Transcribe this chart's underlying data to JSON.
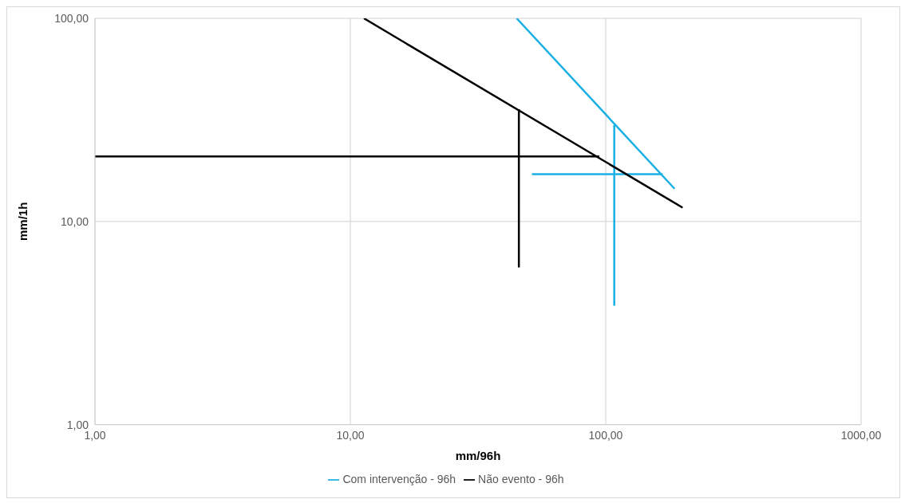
{
  "chart_data": {
    "type": "line",
    "xlabel": "mm/96h",
    "ylabel": "mm/1h",
    "log": "xy",
    "grid": true,
    "legend": "bottom",
    "marker": "none",
    "xlim": [
      1,
      1000
    ],
    "xticks": [
      {
        "value": 1,
        "label": "1,00"
      },
      {
        "value": 10,
        "label": "10,00"
      },
      {
        "value": 100,
        "label": "100,00"
      },
      {
        "value": 1000,
        "label": "1000,00"
      }
    ],
    "ylim": [
      1,
      100
    ],
    "yticks": [
      {
        "value": 1,
        "label": "1,00"
      },
      {
        "value": 10,
        "label": "10,00"
      },
      {
        "value": 100,
        "label": "100,00"
      }
    ],
    "series": [
      {
        "name": "Com intervenção - 96h",
        "color": "#1bb0e4",
        "x": [
          44.8,
          186
        ],
        "values": [
          100,
          14.5
        ]
      },
      {
        "color": "#1bb0e4",
        "x": [
          108,
          108
        ],
        "values": [
          29.9,
          3.85
        ]
      },
      {
        "color": "#1bb0e4",
        "x": [
          51.4,
          167
        ],
        "values": [
          17.1,
          17.1
        ]
      },
      {
        "name": "Não evento - 96h",
        "color": "#000000",
        "x": [
          11.3,
          200
        ],
        "values": [
          100,
          11.7
        ]
      },
      {
        "color": "#000000",
        "x": [
          1,
          94.3
        ],
        "values": [
          20.9,
          20.9
        ]
      },
      {
        "color": "#000000",
        "x": [
          45.7,
          45.7
        ],
        "values": [
          35.7,
          5.94
        ]
      }
    ]
  }
}
